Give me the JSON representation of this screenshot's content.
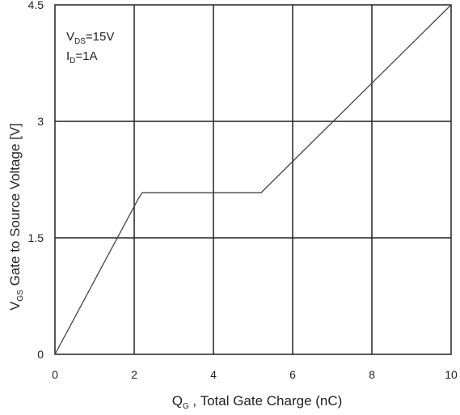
{
  "chart_data": {
    "type": "line",
    "x_axis": {
      "label_main": "Q",
      "label_sub": "G",
      "label_rest": " , Total Gate Charge (nC)",
      "range": [
        0,
        10
      ],
      "ticks": [
        "0",
        "2",
        "4",
        "6",
        "8",
        "10"
      ]
    },
    "y_axis": {
      "label_main": "V",
      "label_sub": "GS",
      "label_rest": "  Gate to Source Voltage [V]",
      "range": [
        0,
        4.5
      ],
      "ticks": [
        "0",
        "1.5",
        "3",
        "4.5"
      ]
    },
    "grid": true,
    "annotations": [
      {
        "main": "V",
        "sub": "DS",
        "rest": "=15V"
      },
      {
        "main": "I",
        "sub": "D",
        "rest": "=1A"
      }
    ],
    "series": [
      {
        "x": [
          0,
          2.1,
          2.2,
          5.2,
          10
        ],
        "y": [
          0,
          2.0,
          2.08,
          2.08,
          4.5
        ]
      }
    ]
  }
}
